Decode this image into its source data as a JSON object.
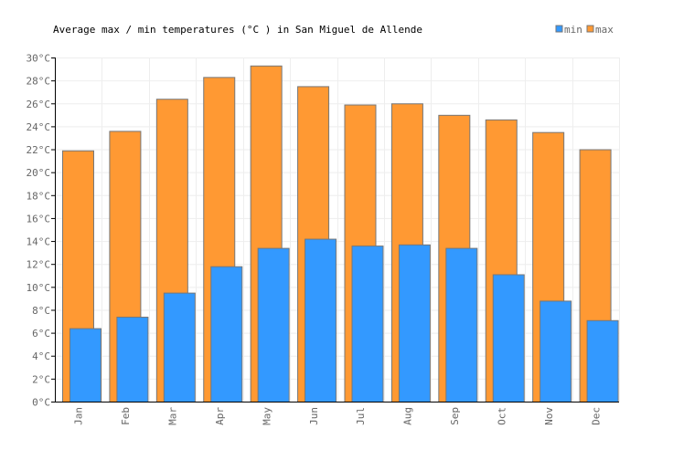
{
  "chart_data": {
    "type": "bar",
    "title": "Average max / min temperatures (°C ) in San Miguel de Allende",
    "categories": [
      "Jan",
      "Feb",
      "Mar",
      "Apr",
      "May",
      "Jun",
      "Jul",
      "Aug",
      "Sep",
      "Oct",
      "Nov",
      "Dec"
    ],
    "series": [
      {
        "name": "min",
        "color": "#3399ff",
        "values": [
          6.4,
          7.4,
          9.5,
          11.8,
          13.4,
          14.2,
          13.6,
          13.7,
          13.4,
          11.1,
          8.8,
          7.1
        ]
      },
      {
        "name": "max",
        "color": "#ff9933",
        "values": [
          21.9,
          23.6,
          26.4,
          28.3,
          29.3,
          27.5,
          25.9,
          26.0,
          25.0,
          24.6,
          23.5,
          22.0
        ]
      }
    ],
    "yticks": [
      "0°C",
      "2°C",
      "4°C",
      "6°C",
      "8°C",
      "10°C",
      "12°C",
      "14°C",
      "16°C",
      "18°C",
      "20°C",
      "22°C",
      "24°C",
      "26°C",
      "28°C",
      "30°C"
    ],
    "ylim": [
      0,
      30
    ],
    "grid": true,
    "legend": "top-right"
  }
}
